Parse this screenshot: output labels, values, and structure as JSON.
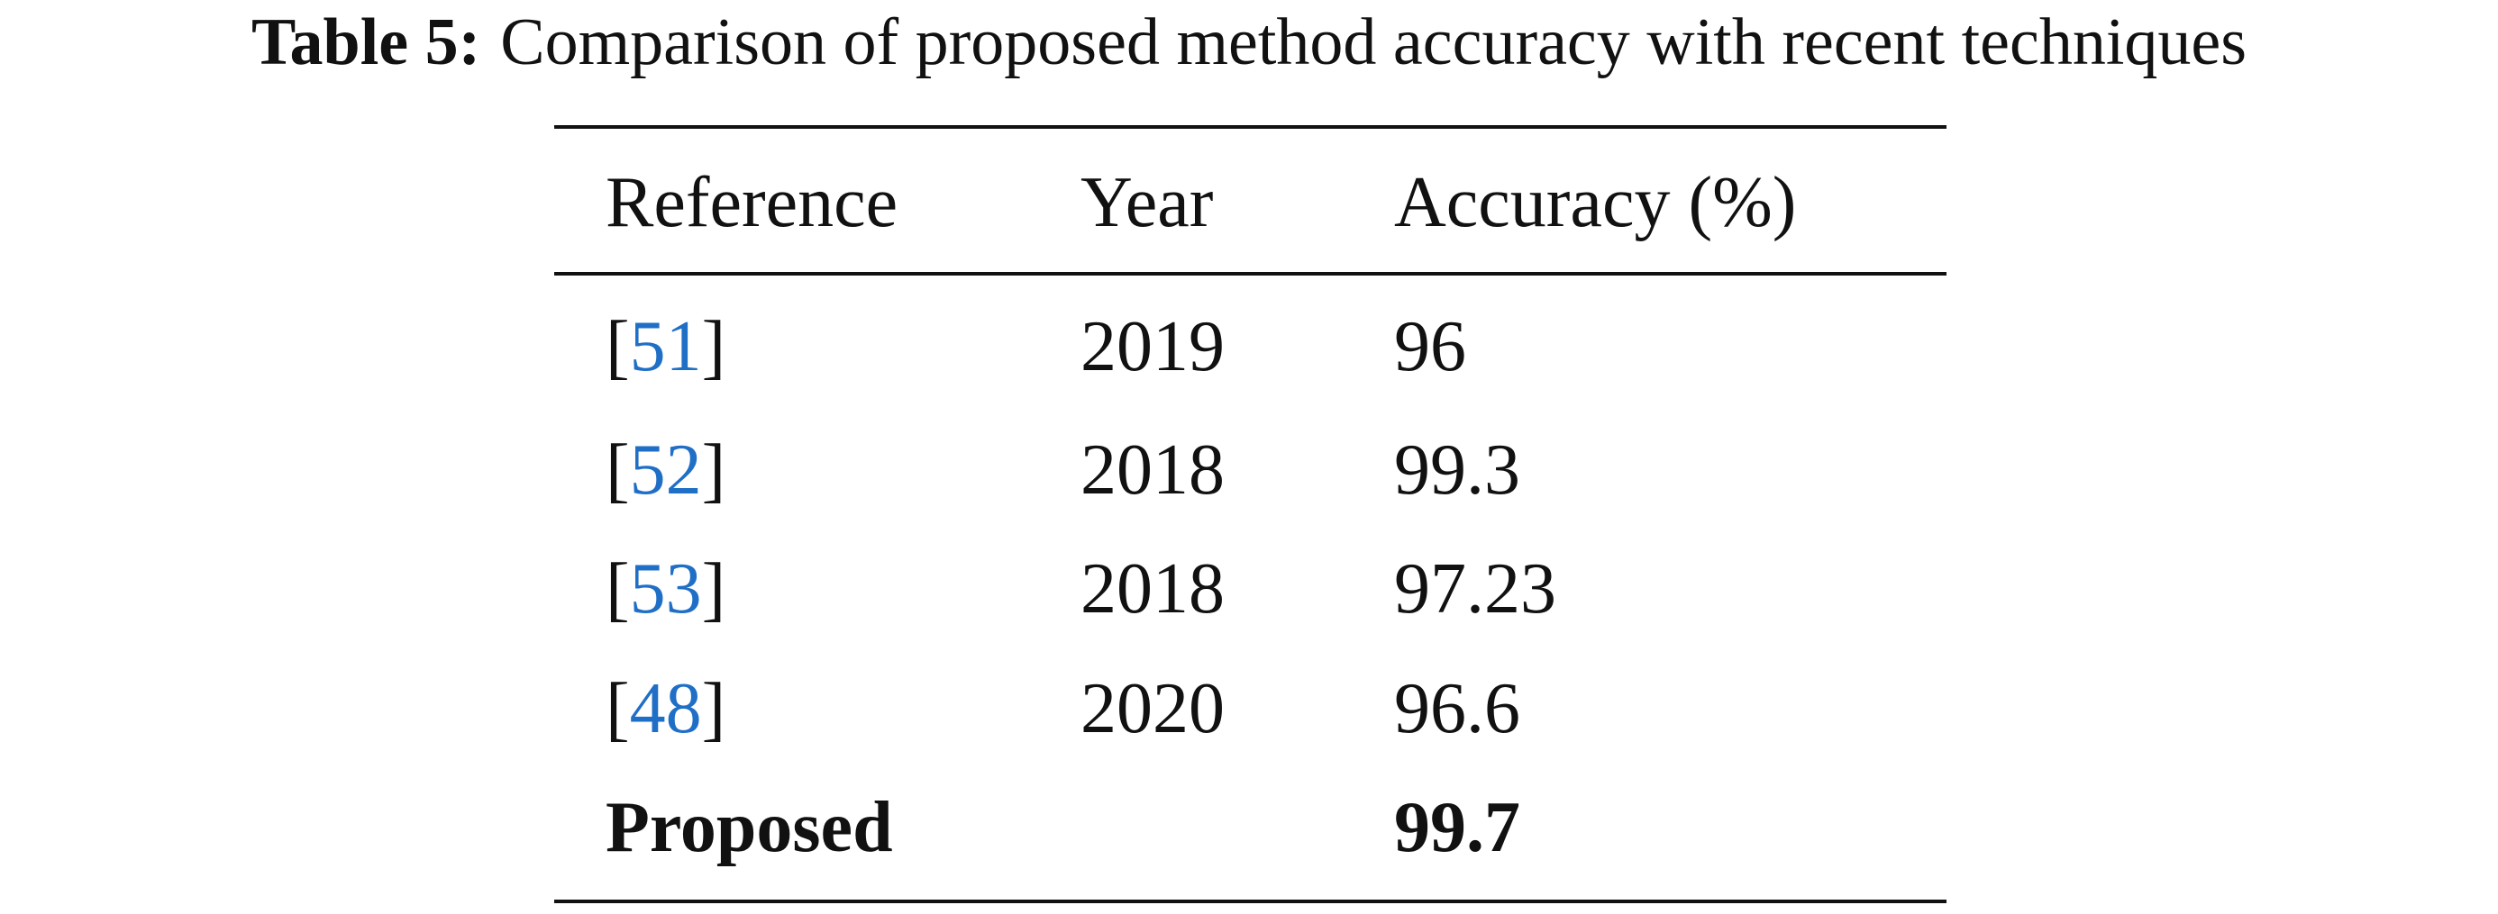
{
  "caption": {
    "label": "Table 5:",
    "text": "Comparison of proposed method accuracy with recent techniques"
  },
  "table": {
    "headers": [
      "Reference",
      "Year",
      "Accuracy (%)"
    ],
    "rows": [
      {
        "reference": [
          "[",
          "51",
          "]"
        ],
        "year": 2019,
        "accuracy": 96
      },
      {
        "reference": [
          "[",
          "52",
          "]"
        ],
        "year": 2018,
        "accuracy": 99.3
      },
      {
        "reference": [
          "[",
          "53",
          "]"
        ],
        "year": 2018,
        "accuracy": 97.23
      },
      {
        "reference": [
          "[",
          "48",
          "]"
        ],
        "year": 2020,
        "accuracy": 96.6
      },
      {
        "reference": [
          "Proposed"
        ],
        "year": null,
        "accuracy": 99.7,
        "bold": true
      }
    ]
  }
}
